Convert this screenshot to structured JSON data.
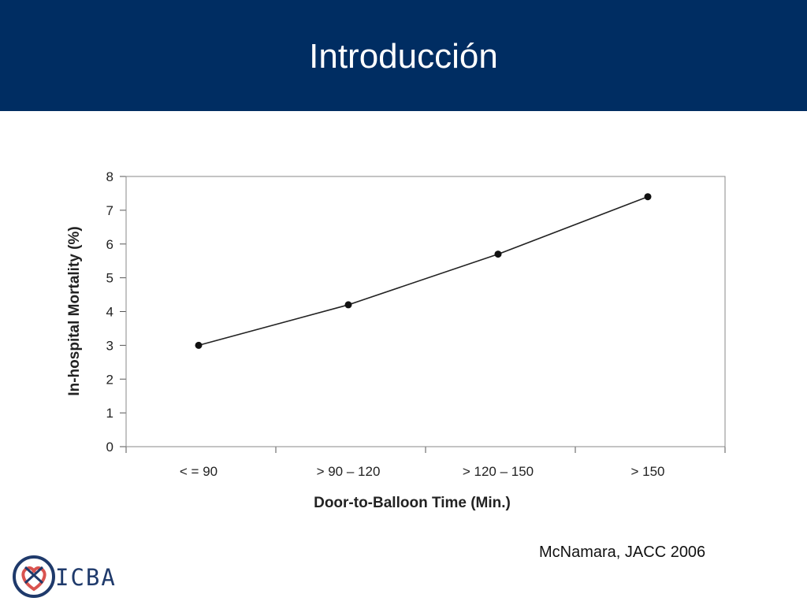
{
  "header": {
    "title": "Introducción"
  },
  "citation": "McNamara, JACC 2006",
  "logo": {
    "text": "ICBA",
    "icon": "heart-knot-logo-icon"
  },
  "colors": {
    "header_bg": "#002d62",
    "logo_primary": "#1f3a6b",
    "logo_accent": "#d9534f"
  },
  "chart_data": {
    "type": "line",
    "categories": [
      "< = 90",
      "> 90 – 120",
      "> 120 – 150",
      "> 150"
    ],
    "values": [
      3.0,
      4.2,
      5.7,
      7.4
    ],
    "xlabel": "Door-to-Balloon Time (Min.)",
    "ylabel": "In-hospital Mortality (%)",
    "ylim": [
      0,
      8
    ],
    "yticks": [
      "0",
      "1",
      "2",
      "3",
      "4",
      "5",
      "6",
      "7",
      "8"
    ],
    "grid": false,
    "legend": "none"
  }
}
